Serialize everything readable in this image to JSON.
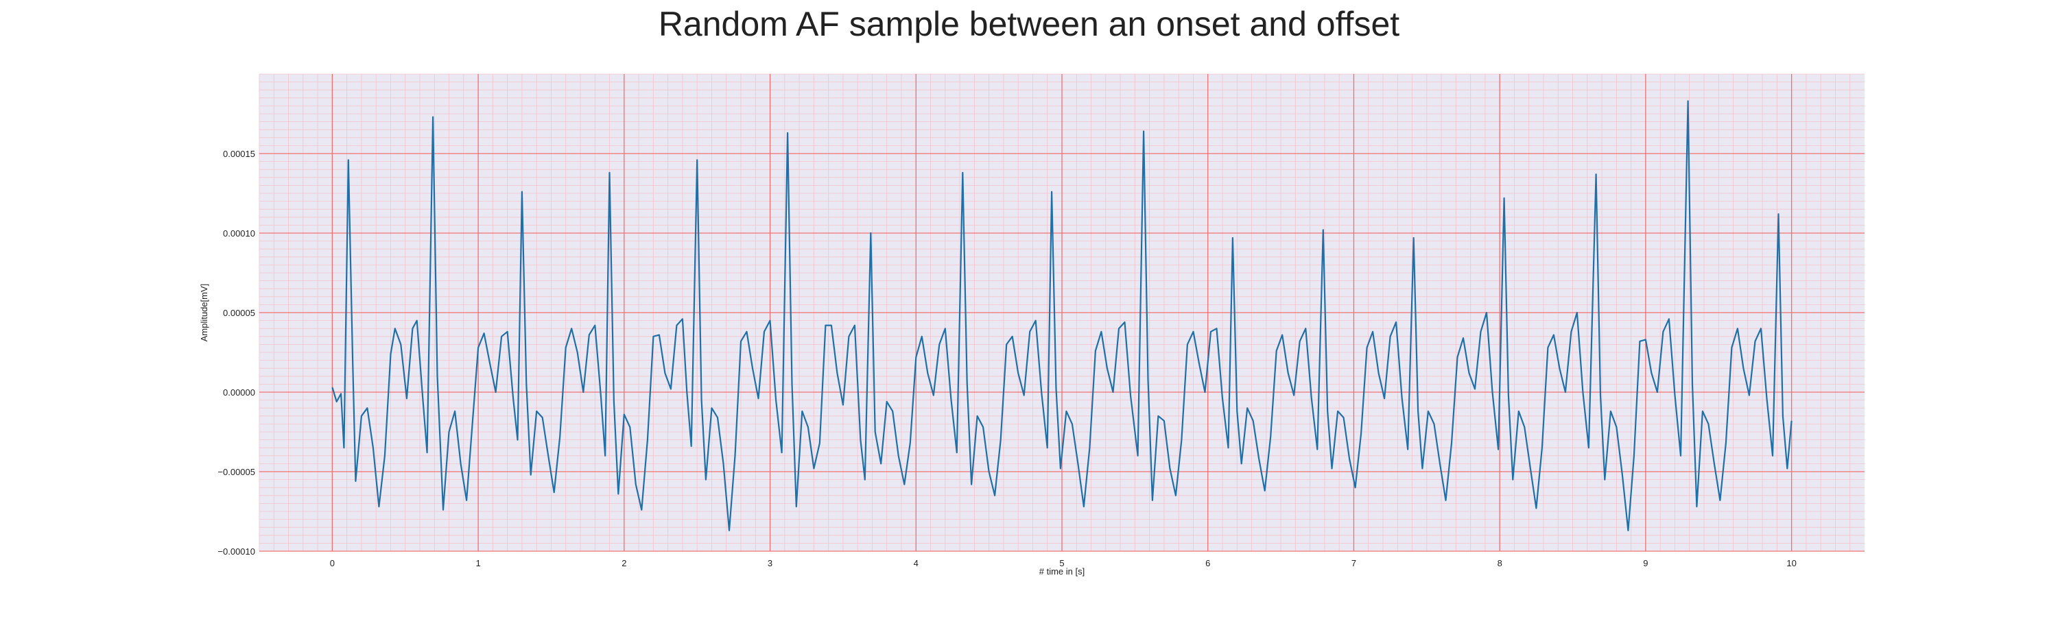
{
  "chart_data": {
    "type": "line",
    "title": "Random AF sample between an onset and offset",
    "xlabel": "# time in [s]",
    "ylabel": "Amplitude[mV]",
    "xlim": [
      -0.5,
      10.5
    ],
    "ylim": [
      -0.0001,
      0.0002
    ],
    "xticks": [
      0,
      1,
      2,
      3,
      4,
      5,
      6,
      7,
      8,
      9,
      10
    ],
    "xtick_labels": [
      "0",
      "1",
      "2",
      "3",
      "4",
      "5",
      "6",
      "7",
      "8",
      "9",
      "10"
    ],
    "yticks": [
      -0.0001,
      -5e-05,
      0,
      5e-05,
      0.0001,
      0.00015
    ],
    "ytick_labels": [
      "−0.00010",
      "−0.00005",
      "0.00000",
      "0.00005",
      "0.00010",
      "0.00015"
    ],
    "grid": "major red grid with minor pink grid",
    "colors": {
      "line": "#1f6fa8",
      "plot_background": "#eae8f2",
      "major_grid": "#f07070",
      "minor_grid": "#f4c4cc"
    },
    "series": [
      {
        "values_note_free": true,
        "points": [
          [
            0.0,
            3e-06
          ],
          [
            0.03,
            -6e-06
          ],
          [
            0.06,
            -1e-06
          ],
          [
            0.08,
            -3.5e-05
          ],
          [
            0.11,
            0.000146
          ],
          [
            0.14,
            2e-05
          ],
          [
            0.16,
            -5.6e-05
          ],
          [
            0.2,
            -1.5e-05
          ],
          [
            0.24,
            -1e-05
          ],
          [
            0.28,
            -3.5e-05
          ],
          [
            0.32,
            -7.2e-05
          ],
          [
            0.36,
            -4e-05
          ],
          [
            0.4,
            2.4e-05
          ],
          [
            0.43,
            4e-05
          ],
          [
            0.47,
            3e-05
          ],
          [
            0.51,
            -4e-06
          ],
          [
            0.55,
            4e-05
          ],
          [
            0.58,
            4.5e-05
          ],
          [
            0.62,
            -4e-06
          ],
          [
            0.65,
            -3.8e-05
          ],
          [
            0.69,
            0.000173
          ],
          [
            0.72,
            1e-05
          ],
          [
            0.76,
            -7.4e-05
          ],
          [
            0.8,
            -2.5e-05
          ],
          [
            0.84,
            -1.2e-05
          ],
          [
            0.88,
            -4.5e-05
          ],
          [
            0.92,
            -6.8e-05
          ],
          [
            0.96,
            -2e-05
          ],
          [
            1.0,
            2.8e-05
          ],
          [
            1.04,
            3.7e-05
          ],
          [
            1.08,
            1.8e-05
          ],
          [
            1.12,
            0.0
          ],
          [
            1.16,
            3.5e-05
          ],
          [
            1.2,
            3.8e-05
          ],
          [
            1.24,
            -4e-06
          ],
          [
            1.27,
            -3e-05
          ],
          [
            1.3,
            0.000126
          ],
          [
            1.33,
            5e-06
          ],
          [
            1.36,
            -5.2e-05
          ],
          [
            1.4,
            -1.2e-05
          ],
          [
            1.44,
            -1.6e-05
          ],
          [
            1.48,
            -4e-05
          ],
          [
            1.52,
            -6.3e-05
          ],
          [
            1.56,
            -2.8e-05
          ],
          [
            1.6,
            2.8e-05
          ],
          [
            1.64,
            4e-05
          ],
          [
            1.68,
            2.5e-05
          ],
          [
            1.72,
            0.0
          ],
          [
            1.76,
            3.6e-05
          ],
          [
            1.8,
            4.2e-05
          ],
          [
            1.84,
            -2e-06
          ],
          [
            1.87,
            -4e-05
          ],
          [
            1.9,
            0.000138
          ],
          [
            1.93,
            -6e-06
          ],
          [
            1.96,
            -6.4e-05
          ],
          [
            2.0,
            -1.4e-05
          ],
          [
            2.04,
            -2.2e-05
          ],
          [
            2.08,
            -5.8e-05
          ],
          [
            2.12,
            -7.4e-05
          ],
          [
            2.16,
            -3e-05
          ],
          [
            2.2,
            3.5e-05
          ],
          [
            2.24,
            3.6e-05
          ],
          [
            2.28,
            1.2e-05
          ],
          [
            2.32,
            2e-06
          ],
          [
            2.36,
            4.2e-05
          ],
          [
            2.4,
            4.6e-05
          ],
          [
            2.43,
            0.0
          ],
          [
            2.46,
            -3.4e-05
          ],
          [
            2.5,
            0.000146
          ],
          [
            2.53,
            -5e-06
          ],
          [
            2.56,
            -5.5e-05
          ],
          [
            2.6,
            -1e-05
          ],
          [
            2.64,
            -1.6e-05
          ],
          [
            2.68,
            -4.5e-05
          ],
          [
            2.72,
            -8.7e-05
          ],
          [
            2.76,
            -4e-05
          ],
          [
            2.8,
            3.2e-05
          ],
          [
            2.84,
            3.8e-05
          ],
          [
            2.88,
            1.5e-05
          ],
          [
            2.92,
            -4e-06
          ],
          [
            2.96,
            3.8e-05
          ],
          [
            3.0,
            4.5e-05
          ],
          [
            3.04,
            -5e-06
          ],
          [
            3.08,
            -3.8e-05
          ],
          [
            3.12,
            0.000163
          ],
          [
            3.15,
            5e-06
          ],
          [
            3.18,
            -7.2e-05
          ],
          [
            3.22,
            -1.2e-05
          ],
          [
            3.26,
            -2.2e-05
          ],
          [
            3.3,
            -4.8e-05
          ],
          [
            3.34,
            -3.2e-05
          ],
          [
            3.38,
            4.2e-05
          ],
          [
            3.42,
            4.2e-05
          ],
          [
            3.46,
            1.2e-05
          ],
          [
            3.5,
            -8e-06
          ],
          [
            3.54,
            3.5e-05
          ],
          [
            3.58,
            4.2e-05
          ],
          [
            3.62,
            -3e-05
          ],
          [
            3.65,
            -5.5e-05
          ],
          [
            3.69,
            0.0001
          ],
          [
            3.72,
            -2.5e-05
          ],
          [
            3.76,
            -4.5e-05
          ],
          [
            3.8,
            -6e-06
          ],
          [
            3.84,
            -1.2e-05
          ],
          [
            3.88,
            -4e-05
          ],
          [
            3.92,
            -5.8e-05
          ],
          [
            3.96,
            -3.2e-05
          ],
          [
            4.0,
            2.2e-05
          ],
          [
            4.04,
            3.5e-05
          ],
          [
            4.08,
            1.2e-05
          ],
          [
            4.12,
            -2e-06
          ],
          [
            4.16,
            3e-05
          ],
          [
            4.2,
            4e-05
          ],
          [
            4.24,
            -4e-06
          ],
          [
            4.28,
            -3.8e-05
          ],
          [
            4.32,
            0.000138
          ],
          [
            4.35,
            6e-06
          ],
          [
            4.38,
            -5.8e-05
          ],
          [
            4.42,
            -1.5e-05
          ],
          [
            4.46,
            -2.2e-05
          ],
          [
            4.5,
            -5e-05
          ],
          [
            4.54,
            -6.5e-05
          ],
          [
            4.58,
            -3e-05
          ],
          [
            4.62,
            3e-05
          ],
          [
            4.66,
            3.5e-05
          ],
          [
            4.7,
            1.2e-05
          ],
          [
            4.74,
            -2e-06
          ],
          [
            4.78,
            3.8e-05
          ],
          [
            4.82,
            4.5e-05
          ],
          [
            4.86,
            0.0
          ],
          [
            4.9,
            -3.5e-05
          ],
          [
            4.93,
            0.000126
          ],
          [
            4.96,
            2e-06
          ],
          [
            4.99,
            -4.8e-05
          ],
          [
            5.03,
            -1.2e-05
          ],
          [
            5.07,
            -2e-05
          ],
          [
            5.11,
            -4.5e-05
          ],
          [
            5.15,
            -7.2e-05
          ],
          [
            5.19,
            -3.5e-05
          ],
          [
            5.23,
            2.6e-05
          ],
          [
            5.27,
            3.8e-05
          ],
          [
            5.31,
            1.5e-05
          ],
          [
            5.35,
            0.0
          ],
          [
            5.39,
            4e-05
          ],
          [
            5.43,
            4.4e-05
          ],
          [
            5.47,
            -2e-06
          ],
          [
            5.52,
            -4e-05
          ],
          [
            5.56,
            0.000164
          ],
          [
            5.59,
            8e-06
          ],
          [
            5.62,
            -6.8e-05
          ],
          [
            5.66,
            -1.5e-05
          ],
          [
            5.7,
            -1.8e-05
          ],
          [
            5.74,
            -4.8e-05
          ],
          [
            5.78,
            -6.5e-05
          ],
          [
            5.82,
            -3e-05
          ],
          [
            5.86,
            3e-05
          ],
          [
            5.9,
            3.8e-05
          ],
          [
            5.94,
            1.8e-05
          ],
          [
            5.98,
            0.0
          ],
          [
            6.02,
            3.8e-05
          ],
          [
            6.06,
            4e-05
          ],
          [
            6.1,
            -4e-06
          ],
          [
            6.14,
            -3.5e-05
          ],
          [
            6.17,
            9.7e-05
          ],
          [
            6.2,
            -1.2e-05
          ],
          [
            6.23,
            -4.5e-05
          ],
          [
            6.27,
            -1e-05
          ],
          [
            6.31,
            -1.8e-05
          ],
          [
            6.35,
            -4.2e-05
          ],
          [
            6.39,
            -6.2e-05
          ],
          [
            6.43,
            -2.8e-05
          ],
          [
            6.47,
            2.6e-05
          ],
          [
            6.51,
            3.6e-05
          ],
          [
            6.55,
            1.2e-05
          ],
          [
            6.59,
            -2e-06
          ],
          [
            6.63,
            3.2e-05
          ],
          [
            6.67,
            4e-05
          ],
          [
            6.71,
            -4e-06
          ],
          [
            6.75,
            -3.6e-05
          ],
          [
            6.79,
            0.000102
          ],
          [
            6.82,
            -1.2e-05
          ],
          [
            6.85,
            -4.8e-05
          ],
          [
            6.89,
            -1.2e-05
          ],
          [
            6.93,
            -1.6e-05
          ],
          [
            6.97,
            -4.2e-05
          ],
          [
            7.01,
            -6e-05
          ],
          [
            7.05,
            -2.6e-05
          ],
          [
            7.09,
            2.8e-05
          ],
          [
            7.13,
            3.8e-05
          ],
          [
            7.17,
            1.2e-05
          ],
          [
            7.21,
            -4e-06
          ],
          [
            7.25,
            3.5e-05
          ],
          [
            7.29,
            4.4e-05
          ],
          [
            7.33,
            -4e-06
          ],
          [
            7.37,
            -3.6e-05
          ],
          [
            7.41,
            9.7e-05
          ],
          [
            7.44,
            -1.2e-05
          ],
          [
            7.47,
            -4.8e-05
          ],
          [
            7.51,
            -1.2e-05
          ],
          [
            7.55,
            -2e-05
          ],
          [
            7.59,
            -4.5e-05
          ],
          [
            7.63,
            -6.8e-05
          ],
          [
            7.67,
            -3.2e-05
          ],
          [
            7.71,
            2.2e-05
          ],
          [
            7.75,
            3.4e-05
          ],
          [
            7.79,
            1.2e-05
          ],
          [
            7.83,
            2e-06
          ],
          [
            7.87,
            3.8e-05
          ],
          [
            7.91,
            5e-05
          ],
          [
            7.95,
            0.0
          ],
          [
            7.99,
            -3.6e-05
          ],
          [
            8.03,
            0.000122
          ],
          [
            8.06,
            -2e-06
          ],
          [
            8.09,
            -5.5e-05
          ],
          [
            8.13,
            -1.2e-05
          ],
          [
            8.17,
            -2.2e-05
          ],
          [
            8.21,
            -4.8e-05
          ],
          [
            8.25,
            -7.3e-05
          ],
          [
            8.29,
            -3.5e-05
          ],
          [
            8.33,
            2.8e-05
          ],
          [
            8.37,
            3.6e-05
          ],
          [
            8.41,
            1.5e-05
          ],
          [
            8.45,
            0.0
          ],
          [
            8.49,
            3.8e-05
          ],
          [
            8.53,
            5e-05
          ],
          [
            8.57,
            0.0
          ],
          [
            8.61,
            -3.5e-05
          ],
          [
            8.66,
            0.000137
          ],
          [
            8.69,
            -2e-06
          ],
          [
            8.72,
            -5.5e-05
          ],
          [
            8.76,
            -1.2e-05
          ],
          [
            8.8,
            -2.2e-05
          ],
          [
            8.84,
            -5.2e-05
          ],
          [
            8.88,
            -8.7e-05
          ],
          [
            8.92,
            -4e-05
          ],
          [
            8.96,
            3.2e-05
          ],
          [
            9.0,
            3.3e-05
          ],
          [
            9.04,
            1.2e-05
          ],
          [
            9.08,
            0.0
          ],
          [
            9.12,
            3.8e-05
          ],
          [
            9.16,
            4.6e-05
          ],
          [
            9.2,
            -2e-06
          ],
          [
            9.24,
            -4e-05
          ],
          [
            9.29,
            0.000183
          ],
          [
            9.32,
            5e-06
          ],
          [
            9.35,
            -7.2e-05
          ],
          [
            9.39,
            -1.2e-05
          ],
          [
            9.43,
            -2e-05
          ],
          [
            9.47,
            -4.5e-05
          ],
          [
            9.51,
            -6.8e-05
          ],
          [
            9.55,
            -3.2e-05
          ],
          [
            9.59,
            2.8e-05
          ],
          [
            9.63,
            4e-05
          ],
          [
            9.67,
            1.5e-05
          ],
          [
            9.71,
            -2e-06
          ],
          [
            9.75,
            3.2e-05
          ],
          [
            9.79,
            4e-05
          ],
          [
            9.83,
            -4e-06
          ],
          [
            9.87,
            -4e-05
          ],
          [
            9.91,
            0.000112
          ],
          [
            9.94,
            -1.5e-05
          ],
          [
            9.97,
            -4.8e-05
          ],
          [
            10.0,
            -1.8e-05
          ]
        ]
      }
    ]
  }
}
